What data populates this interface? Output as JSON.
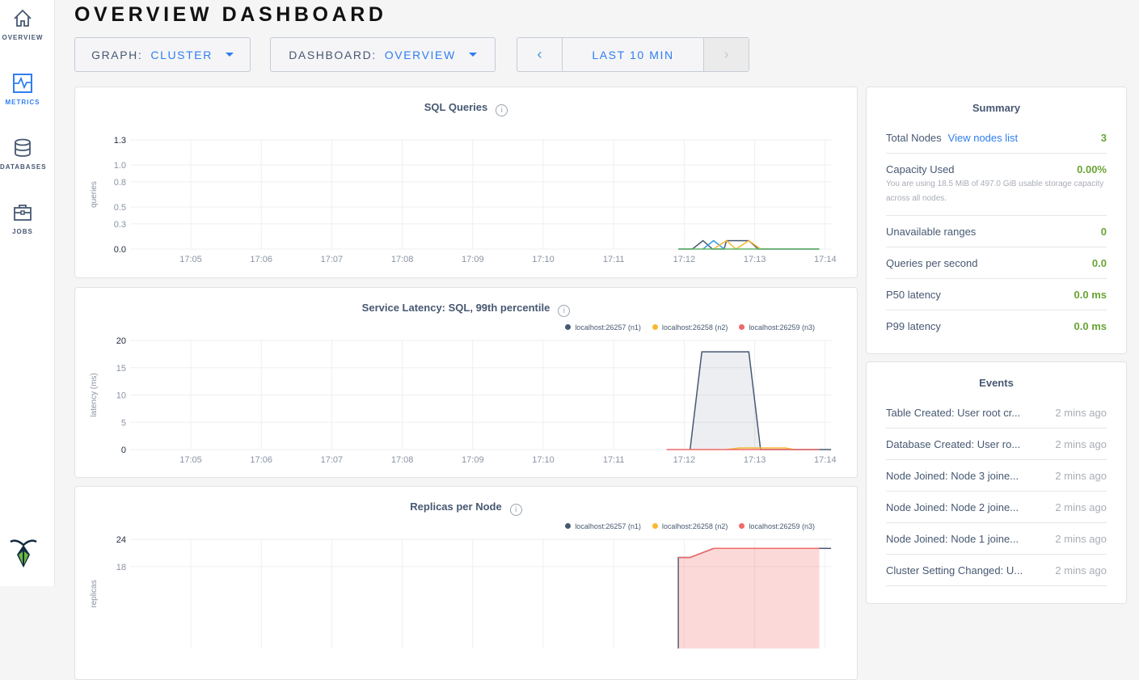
{
  "sidebar": {
    "items": [
      {
        "label": "OVERVIEW",
        "icon": "home-icon"
      },
      {
        "label": "METRICS",
        "icon": "metrics-icon",
        "active": true
      },
      {
        "label": "DATABASES",
        "icon": "database-icon"
      },
      {
        "label": "JOBS",
        "icon": "briefcase-icon"
      }
    ],
    "logo": "cockroach-logo"
  },
  "header": {
    "title": "OVERVIEW DASHBOARD"
  },
  "controls": {
    "graph_label": "GRAPH:",
    "graph_value": "CLUSTER",
    "dashboard_label": "DASHBOARD:",
    "dashboard_value": "OVERVIEW",
    "prev": "‹",
    "range": "LAST 10 MIN",
    "next": "›"
  },
  "colors": {
    "accent": "#2f7ef0",
    "good": "#6aa436",
    "n1": "#475872",
    "n2": "#f6b932",
    "n3": "#f16969"
  },
  "chart_data": [
    {
      "type": "line",
      "title": "SQL Queries",
      "ylabel": "queries",
      "ylim": [
        0,
        1.3
      ],
      "yticks": [
        "1.3",
        "1.0",
        "0.8",
        "0.5",
        "0.3",
        "0.0"
      ],
      "xticks": [
        "17:05",
        "17:06",
        "17:07",
        "17:08",
        "17:09",
        "17:10",
        "17:11",
        "17:12",
        "17:13",
        "17:14"
      ],
      "grid": true,
      "series": [
        {
          "color": "#475872",
          "points": [
            [
              "17:11:55",
              0
            ],
            [
              "17:12:07",
              0
            ],
            [
              "17:12:16",
              0.1
            ],
            [
              "17:12:24",
              0
            ],
            [
              "17:12:34",
              0
            ],
            [
              "17:12:36",
              0.1
            ],
            [
              "17:12:55",
              0.1
            ],
            [
              "17:13:03",
              0
            ],
            [
              "17:13:55",
              0
            ]
          ]
        },
        {
          "color": "#3a9ad9",
          "points": [
            [
              "17:12:16",
              0
            ],
            [
              "17:12:25",
              0.1
            ],
            [
              "17:12:34",
              0
            ]
          ]
        },
        {
          "color": "#f6b932",
          "points": [
            [
              "17:12:25",
              0
            ],
            [
              "17:12:36",
              0.1
            ],
            [
              "17:12:44",
              0
            ],
            [
              "17:12:55",
              0.1
            ],
            [
              "17:13:05",
              0
            ]
          ]
        },
        {
          "color": "#5fb567",
          "points": [
            [
              "17:11:55",
              0
            ],
            [
              "17:13:55",
              0
            ]
          ]
        }
      ]
    },
    {
      "type": "line",
      "title": "Service Latency: SQL, 99th percentile",
      "ylabel": "latency (ms)",
      "ylim": [
        0,
        20
      ],
      "yticks": [
        "20",
        "15",
        "10",
        "5",
        "0"
      ],
      "xticks": [
        "17:05",
        "17:06",
        "17:07",
        "17:08",
        "17:09",
        "17:10",
        "17:11",
        "17:12",
        "17:13",
        "17:14"
      ],
      "grid": true,
      "legend": "top-right",
      "series": [
        {
          "name": "localhost:26257 (n1)",
          "color": "#475872",
          "fill": true,
          "points": [
            [
              "17:12:05",
              0
            ],
            [
              "17:12:15",
              17.9
            ],
            [
              "17:12:55",
              17.9
            ],
            [
              "17:13:05",
              0
            ],
            [
              "17:14:05",
              0
            ]
          ]
        },
        {
          "name": "localhost:26258 (n2)",
          "color": "#f6b932",
          "points": [
            [
              "17:12:36",
              0
            ],
            [
              "17:12:47",
              0.3
            ],
            [
              "17:13:26",
              0.3
            ],
            [
              "17:13:34",
              0
            ]
          ]
        },
        {
          "name": "localhost:26259 (n3)",
          "color": "#f16969",
          "points": [
            [
              "17:11:45",
              0
            ],
            [
              "17:13:55",
              0
            ]
          ]
        }
      ]
    },
    {
      "type": "line",
      "title": "Replicas per Node",
      "ylabel": "replicas",
      "ylim": [
        0,
        24
      ],
      "yticks": [
        "24",
        "18"
      ],
      "xticks": [],
      "grid": true,
      "legend": "top-right",
      "series": [
        {
          "name": "localhost:26257 (n1)",
          "color": "#475872",
          "points": [
            [
              "17:11:55",
              0
            ],
            [
              "17:11:55",
              20
            ],
            [
              "17:12:05",
              20
            ],
            [
              "17:12:25",
              22
            ],
            [
              "17:14:05",
              22
            ]
          ]
        },
        {
          "name": "localhost:26258 (n2)",
          "color": "#f6b932",
          "points": []
        },
        {
          "name": "localhost:26259 (n3)",
          "color": "#f16969",
          "fill": true,
          "points": [
            [
              "17:11:55",
              20
            ],
            [
              "17:12:05",
              20
            ],
            [
              "17:12:25",
              22
            ],
            [
              "17:13:55",
              22
            ]
          ]
        }
      ]
    }
  ],
  "summary": {
    "title": "Summary",
    "total_nodes_label": "Total Nodes",
    "view_nodes": "View nodes list",
    "total_nodes": "3",
    "capacity_label": "Capacity Used",
    "capacity": "0.00%",
    "capacity_note": "You are using 18.5 MiB of 497.0 GiB usable storage capacity across all nodes.",
    "rows": [
      {
        "label": "Unavailable ranges",
        "value": "0"
      },
      {
        "label": "Queries per second",
        "value": "0.0"
      },
      {
        "label": "P50 latency",
        "value": "0.0 ms"
      },
      {
        "label": "P99 latency",
        "value": "0.0 ms"
      }
    ]
  },
  "events": {
    "title": "Events",
    "items": [
      {
        "text": "Table Created: User root cr...",
        "time": "2 mins ago"
      },
      {
        "text": "Database Created: User ro...",
        "time": "2 mins ago"
      },
      {
        "text": "Node Joined: Node 3 joine...",
        "time": "2 mins ago"
      },
      {
        "text": "Node Joined: Node 2 joine...",
        "time": "2 mins ago"
      },
      {
        "text": "Node Joined: Node 1 joine...",
        "time": "2 mins ago"
      },
      {
        "text": "Cluster Setting Changed: U...",
        "time": "2 mins ago"
      }
    ]
  }
}
